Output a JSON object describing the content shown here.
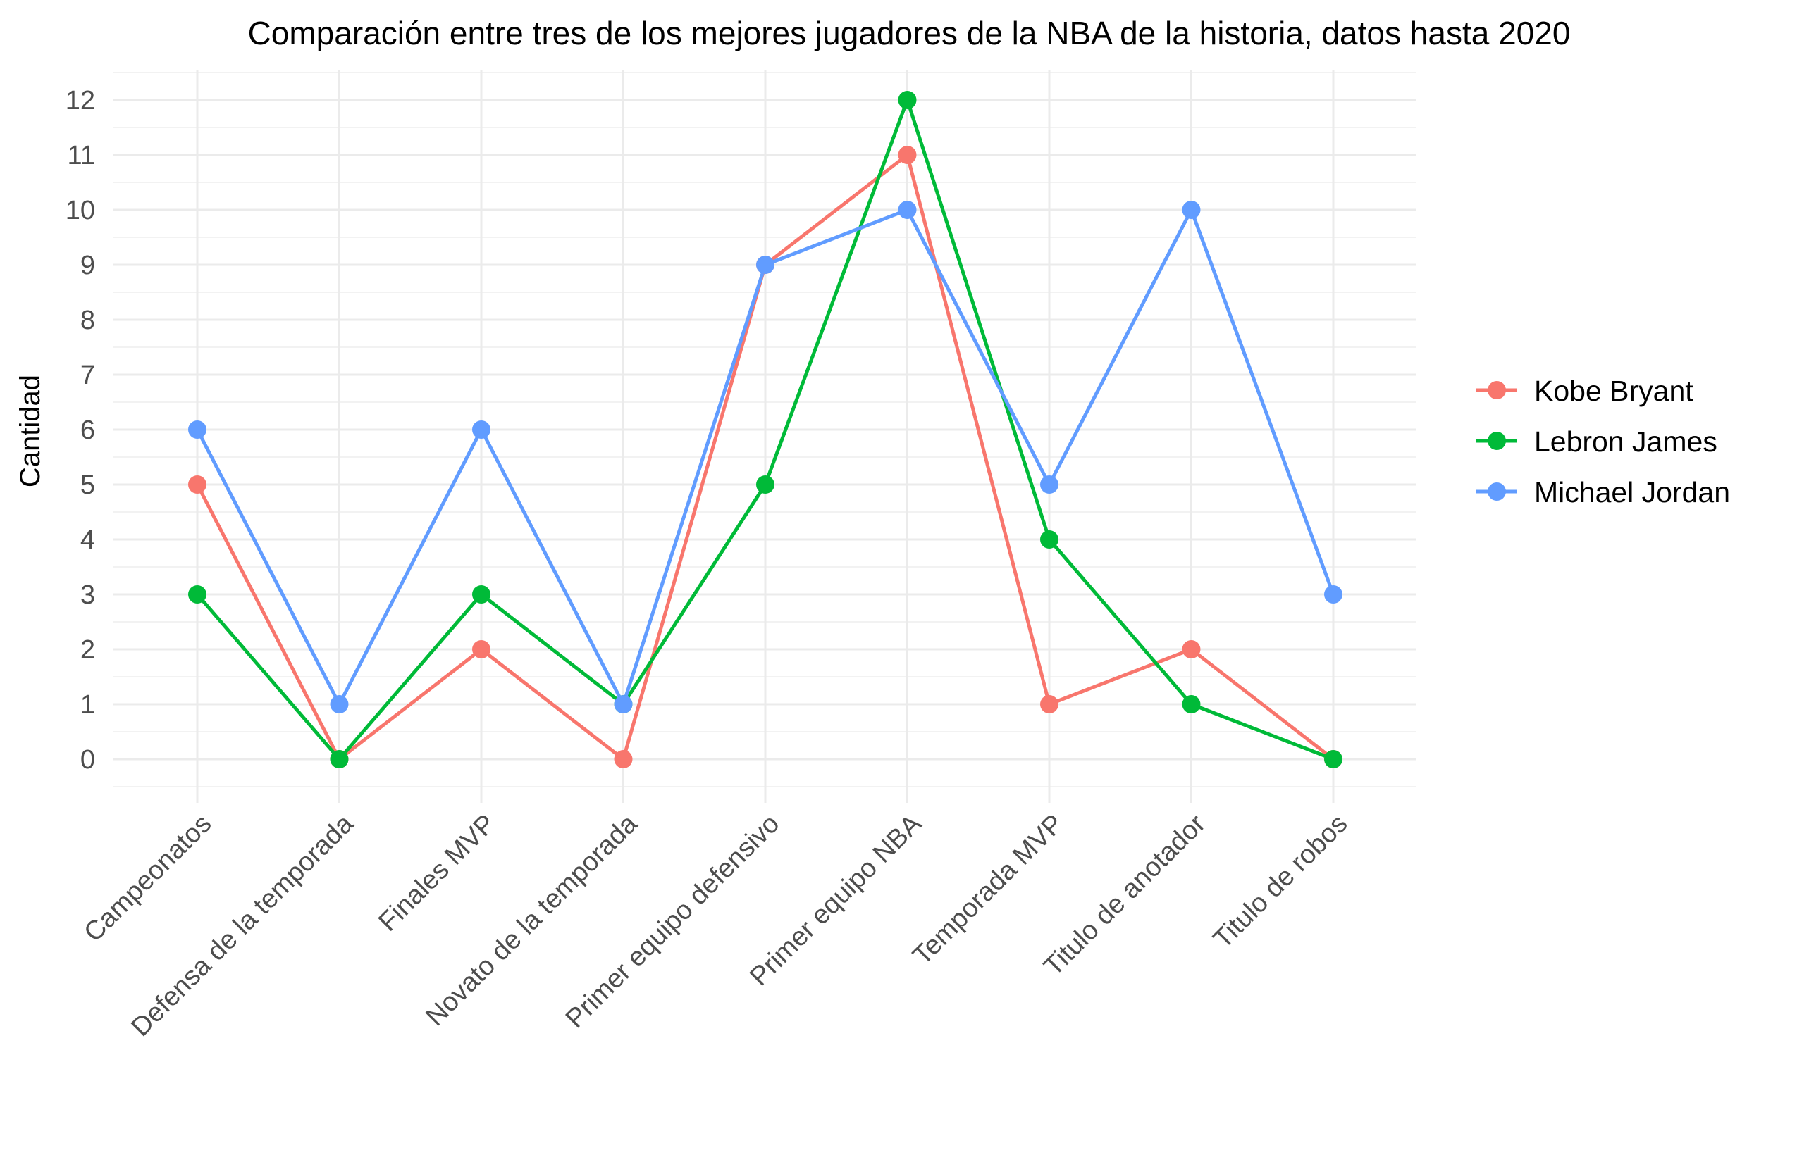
{
  "chart_data": {
    "type": "line",
    "title": "Comparación entre tres de los mejores jugadores de la NBA de la historia, datos hasta 2020",
    "xlabel": "",
    "ylabel": "Cantidad",
    "categories": [
      "Campeonatos",
      "Defensa de la temporada",
      "Finales MVP",
      "Novato de la temporada",
      "Primer equipo defensivo",
      "Primer equipo NBA",
      "Temporada MVP",
      "Titulo de anotador",
      "Titulo de robos"
    ],
    "yticks": [
      "0",
      "1",
      "2",
      "3",
      "4",
      "5",
      "6",
      "7",
      "8",
      "9",
      "10",
      "11",
      "12"
    ],
    "ylim": [
      -0.5,
      12.5
    ],
    "grid": true,
    "legend_position": "right",
    "series": [
      {
        "name": "Kobe Bryant",
        "color": "#F8766D",
        "values": [
          5,
          0,
          2,
          0,
          9,
          11,
          1,
          2,
          0
        ]
      },
      {
        "name": "Lebron James",
        "color": "#00BA38",
        "values": [
          3,
          0,
          3,
          1,
          5,
          12,
          4,
          1,
          0
        ]
      },
      {
        "name": "Michael Jordan",
        "color": "#619CFF",
        "values": [
          6,
          1,
          6,
          1,
          9,
          10,
          5,
          10,
          3
        ]
      }
    ]
  }
}
